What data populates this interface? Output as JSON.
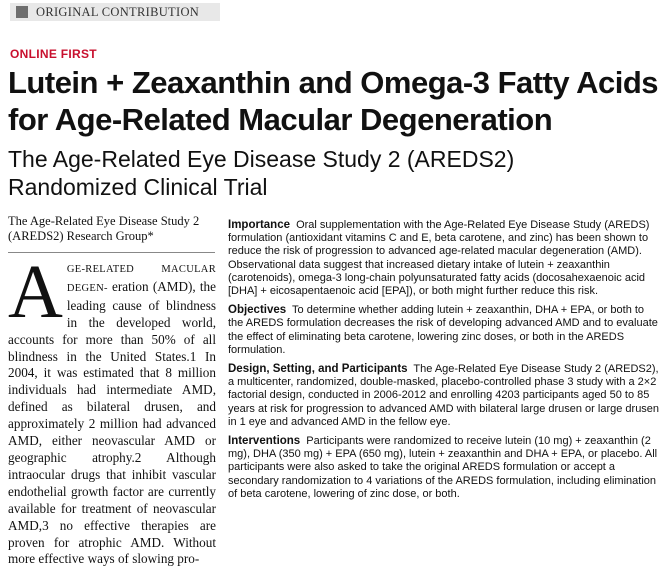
{
  "section": "ORIGINAL CONTRIBUTION",
  "online_first": "ONLINE FIRST",
  "title": "Lutein + Zeaxanthin and Omega-3 Fatty Acids for Age-Related Macular Degeneration",
  "subtitle": "The Age-Related Eye Disease Study 2 (AREDS2) Randomized Clinical Trial",
  "authors": "The Age-Related Eye Disease Study 2 (AREDS2) Research Group*",
  "body": {
    "drop_cap": "A",
    "lead_smallcaps": "GE-RELATED MACULAR DEGEN-",
    "text": "eration (AMD), the leading cause of blindness in the developed world, accounts for more than 50% of all blindness in the United States.1 In 2004, it was estimated that 8 million individuals had intermediate AMD, defined as bilateral drusen, and approximately 2 million had advanced AMD, either neovascular AMD or geographic atrophy.2 Although intraocular drugs that inhibit vascular endothelial growth factor are currently available for treatment of neovascular AMD,3 no effective therapies are proven for atrophic AMD. Without more effective ways of slowing pro-"
  },
  "abstract": {
    "importance": {
      "heading": "Importance",
      "text": "Oral supplementation with the Age-Related Eye Disease Study (AREDS) formulation (antioxidant vitamins C and E, beta carotene, and zinc) has been shown to reduce the risk of progression to advanced age-related macular degeneration (AMD). Observational data suggest that increased dietary intake of lutein + zeaxanthin (carotenoids), omega-3 long-chain polyunsaturated fatty acids (docosahexaenoic acid [DHA] + eicosapentaenoic acid [EPA]), or both might further reduce this risk."
    },
    "objectives": {
      "heading": "Objectives",
      "text": "To determine whether adding lutein + zeaxanthin, DHA + EPA, or both to the AREDS formulation decreases the risk of developing advanced AMD and to evaluate the effect of eliminating beta carotene, lowering zinc doses, or both in the AREDS formulation."
    },
    "design": {
      "heading": "Design, Setting, and Participants",
      "text": "The Age-Related Eye Disease Study 2 (AREDS2), a multicenter, randomized, double-masked, placebo-controlled phase 3 study with a 2×2 factorial design, conducted in 2006-2012 and enrolling 4203 participants aged 50 to 85 years at risk for progression to advanced AMD with bilateral large drusen or large drusen in 1 eye and advanced AMD in the fellow eye."
    },
    "interventions": {
      "heading": "Interventions",
      "text": "Participants were randomized to receive lutein (10 mg) + zeaxanthin (2 mg), DHA (350 mg) + EPA (650 mg), lutein + zeaxanthin and DHA + EPA, or placebo. All participants were also asked to take the original AREDS formulation or accept a secondary randomization to 4 variations of the AREDS formulation, including elimination of beta carotene, lowering of zinc dose, or both."
    }
  }
}
